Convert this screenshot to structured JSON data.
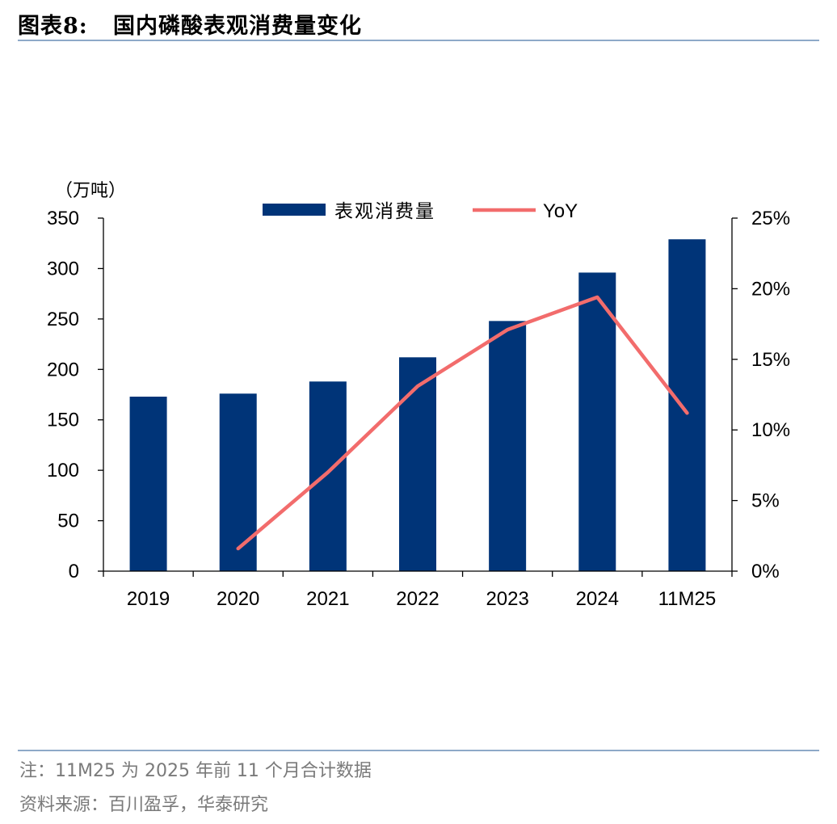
{
  "title": "图表8:   国内磷酸表观消费量变化",
  "footer": {
    "note": "注：11M25 为 2025 年前 11 个月合计数据",
    "source": "资料来源：百川盈孚，华泰研究"
  },
  "colors": {
    "bar": "#003478",
    "line": "#f26c6c",
    "rule": "#8ea9c8"
  },
  "chart_data": {
    "type": "bar",
    "categories": [
      "2019",
      "2020",
      "2021",
      "2022",
      "2023",
      "2024",
      "11M25"
    ],
    "series": [
      {
        "name": "表观消费量",
        "type": "bar",
        "axis": "left",
        "values": [
          173,
          176,
          188,
          212,
          248,
          296,
          329
        ]
      },
      {
        "name": "YoY",
        "type": "line",
        "axis": "right",
        "values": [
          null,
          1.6,
          7.0,
          13.1,
          17.1,
          19.4,
          11.2
        ]
      }
    ],
    "y_left": {
      "label": "（万吨）",
      "lim": [
        0,
        350
      ],
      "ticks": [
        0,
        50,
        100,
        150,
        200,
        250,
        300,
        350
      ]
    },
    "y_right": {
      "lim": [
        0,
        25
      ],
      "ticks": [
        0,
        5,
        10,
        15,
        20,
        25
      ],
      "tick_suffix": "%"
    },
    "legend": {
      "position": "top-center"
    },
    "grid": false
  }
}
